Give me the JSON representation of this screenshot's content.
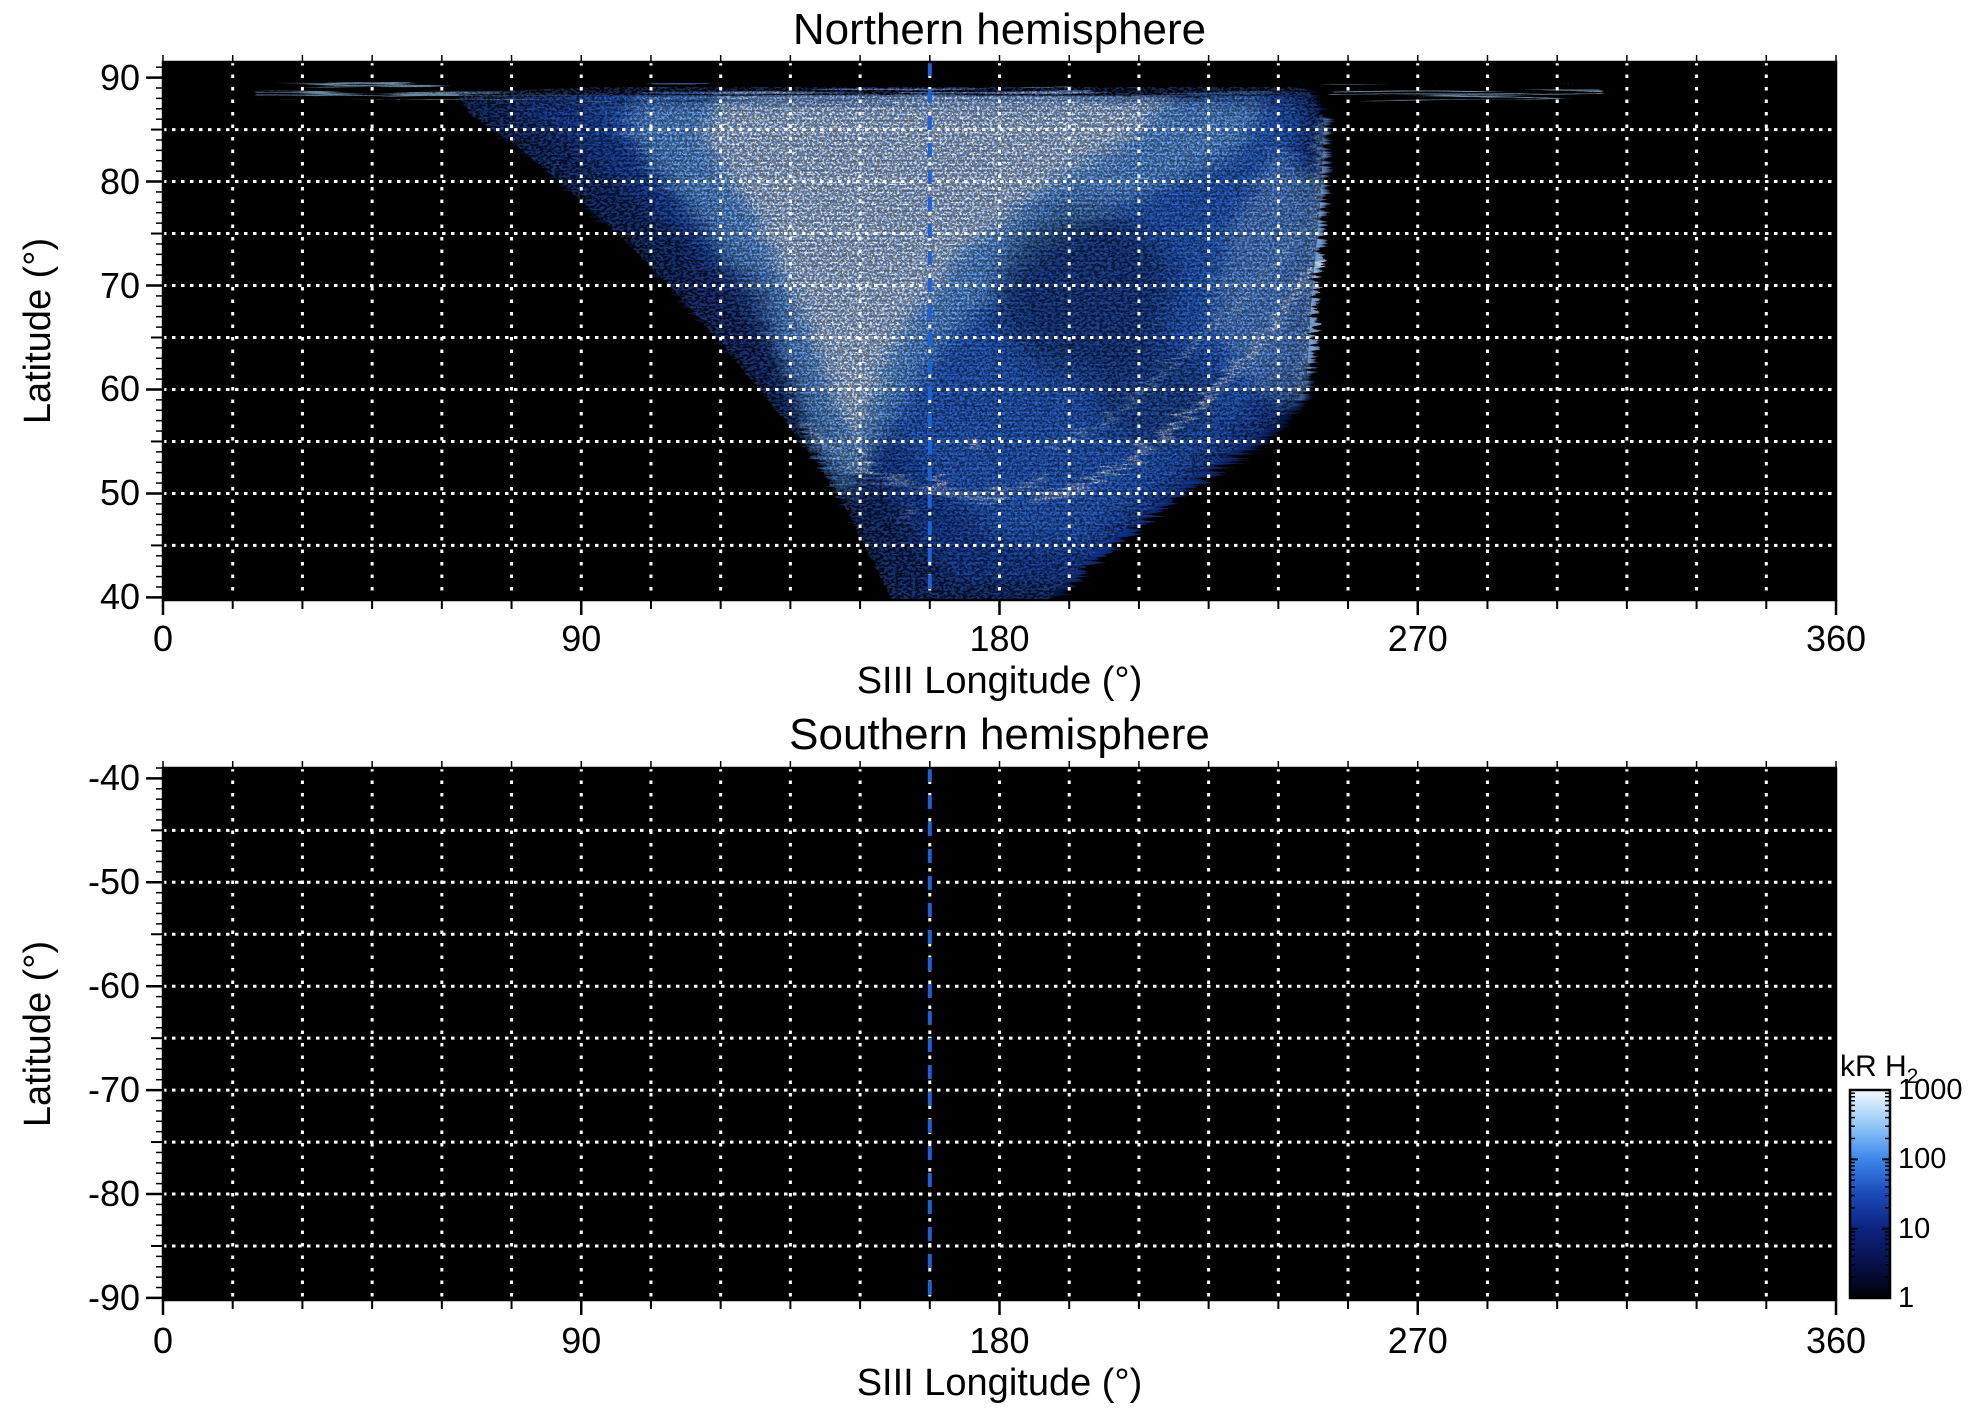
{
  "panels": [
    {
      "title": "Northern hemisphere",
      "x_axis": {
        "label": "SIII Longitude (°)",
        "tick_labels": [
          "0",
          "90",
          "180",
          "270",
          "360"
        ]
      },
      "y_axis": {
        "label": "Latitude (°)",
        "tick_labels": [
          "90",
          "80",
          "70",
          "60",
          "50",
          "40"
        ]
      },
      "marker_longitude": 165
    },
    {
      "title": "Southern hemisphere",
      "x_axis": {
        "label": "SIII Longitude (°)",
        "tick_labels": [
          "0",
          "90",
          "180",
          "270",
          "360"
        ]
      },
      "y_axis": {
        "label": "Latitude (°)",
        "tick_labels": [
          "-40",
          "-50",
          "-60",
          "-70",
          "-80",
          "-90"
        ]
      },
      "marker_longitude": 165
    }
  ],
  "colorbar": {
    "title": "kR H",
    "title_sub": "2",
    "tick_labels": [
      "1000",
      "100",
      "10",
      "1"
    ],
    "scale": "log",
    "gradient_stops": [
      "#010108",
      "#07114a",
      "#0d2380",
      "#1b49b8",
      "#3c86ea",
      "#93c9f7",
      "#f2faff"
    ]
  },
  "colors": {
    "plot_background": "#000000",
    "grid": "#ffffff",
    "marker_line": "#1e62d6",
    "axis": "#000000"
  },
  "chart_data": {
    "type": "heatmap",
    "colorbar": {
      "label": "kR H2",
      "scale": "log",
      "range": [
        1,
        1000
      ],
      "ticks": [
        1,
        10,
        100,
        1000
      ],
      "colormap": "black-darkblue-blue-lightblue-white"
    },
    "marker_line_longitude": 165,
    "grid": {
      "x_step_deg": 15,
      "y_step_deg": 5,
      "style": "white dotted"
    },
    "panels": [
      {
        "title": "Northern hemisphere",
        "xlabel": "SIII Longitude (°)",
        "ylabel": "Latitude (°)",
        "xlim": [
          0,
          360
        ],
        "ylim": [
          40,
          90
        ],
        "x_bin_deg": 15,
        "y_bin_deg": 5,
        "lat_row_ranges_top_to_bottom": [
          "90-85",
          "85-80",
          "80-75",
          "75-70",
          "70-65",
          "65-60",
          "60-55",
          "55-50",
          "50-45",
          "45-40"
        ],
        "lon_bin_start_deg": [
          0,
          15,
          30,
          45,
          60,
          75,
          90,
          105,
          120,
          135,
          150,
          165,
          180,
          195,
          210,
          225,
          240,
          255,
          270,
          285,
          300,
          315,
          330,
          345
        ],
        "intensity_kR": [
          [
            0,
            50,
            80,
            100,
            150,
            250,
            400,
            800,
            1000,
            1000,
            1000,
            900,
            800,
            700,
            500,
            400,
            250,
            150,
            150,
            100,
            50,
            0,
            0,
            0
          ],
          [
            0,
            0,
            0,
            0,
            60,
            120,
            250,
            500,
            700,
            800,
            800,
            700,
            500,
            300,
            250,
            300,
            200,
            0,
            0,
            0,
            0,
            0,
            0,
            0
          ],
          [
            0,
            0,
            0,
            0,
            30,
            60,
            120,
            300,
            450,
            500,
            400,
            250,
            150,
            150,
            250,
            350,
            300,
            0,
            0,
            0,
            0,
            0,
            0,
            0
          ],
          [
            0,
            0,
            0,
            0,
            0,
            25,
            60,
            150,
            300,
            400,
            300,
            150,
            100,
            150,
            200,
            300,
            250,
            0,
            0,
            0,
            0,
            0,
            0,
            0
          ],
          [
            0,
            0,
            0,
            0,
            0,
            0,
            25,
            60,
            150,
            300,
            250,
            120,
            100,
            150,
            250,
            200,
            0,
            0,
            0,
            0,
            0,
            0,
            0,
            0
          ],
          [
            0,
            0,
            0,
            0,
            0,
            0,
            0,
            25,
            80,
            200,
            250,
            150,
            100,
            200,
            250,
            60,
            0,
            0,
            0,
            0,
            0,
            0,
            0,
            0
          ],
          [
            0,
            0,
            0,
            0,
            0,
            0,
            0,
            0,
            30,
            120,
            200,
            200,
            150,
            180,
            60,
            0,
            0,
            0,
            0,
            0,
            0,
            0,
            0,
            0
          ],
          [
            0,
            0,
            0,
            0,
            0,
            0,
            0,
            0,
            0,
            30,
            120,
            250,
            150,
            60,
            0,
            0,
            0,
            0,
            0,
            0,
            0,
            0,
            0,
            0
          ],
          [
            0,
            0,
            0,
            0,
            0,
            0,
            0,
            0,
            0,
            0,
            30,
            80,
            60,
            20,
            0,
            0,
            0,
            0,
            0,
            0,
            0,
            0,
            0,
            0
          ],
          [
            0,
            0,
            0,
            0,
            0,
            0,
            0,
            0,
            0,
            0,
            15,
            40,
            30,
            0,
            0,
            0,
            0,
            0,
            0,
            0,
            0,
            0,
            0,
            0
          ]
        ],
        "features": [
          "thin bright streak at latitude ~89° spanning longitudes ~18°-308°",
          "broad funnel-shaped emission, brightest (near-white, ~1000 kR) at 82°-89° latitude between longitudes ~105°-225°",
          "emission narrows to a faint V reaching latitude 40° near longitude 160°-195°",
          "sharp right boundary near longitude ~250° from latitude ~89° down to ~60°",
          "bright white diagonal arc from (~248°, 73°) to (~186°, 50°)",
          "bright vertical streak near longitude ~147° between latitudes 80° and 52°",
          "small bright blobs near (159°-178°, 48°-56°)",
          "dark mottled bay around (180°-215°, 58°-78°)"
        ]
      },
      {
        "title": "Southern hemisphere",
        "xlabel": "SIII Longitude (°)",
        "ylabel": "Latitude (°)",
        "xlim": [
          0,
          360
        ],
        "ylim": [
          -90,
          -40
        ],
        "intensity_kR": "all zero — no emission observed (panel entirely black)"
      }
    ]
  },
  "aurora_model": {
    "funnel": [
      [
        63,
        88.6
      ],
      [
        95,
        89.1
      ],
      [
        246,
        89.1
      ],
      [
        250,
        86
      ],
      [
        249,
        78
      ],
      [
        247,
        68
      ],
      [
        246,
        60
      ],
      [
        240,
        57
      ],
      [
        230,
        54
      ],
      [
        220,
        51
      ],
      [
        210,
        47.5
      ],
      [
        201,
        44.5
      ],
      [
        194,
        41.5
      ],
      [
        190,
        39.6
      ],
      [
        157,
        39.6
      ],
      [
        152,
        44
      ],
      [
        147,
        48.5
      ],
      [
        140,
        53.5
      ],
      [
        131,
        58.5
      ],
      [
        121,
        64
      ],
      [
        110,
        69.5
      ],
      [
        99,
        74.5
      ],
      [
        88,
        79
      ],
      [
        76,
        83.5
      ],
      [
        66,
        86.5
      ]
    ],
    "fills": [
      {
        "pts": [
          [
            63,
            88.6
          ],
          [
            95,
            89.1
          ],
          [
            246,
            89.1
          ],
          [
            250,
            86
          ],
          [
            249,
            78
          ],
          [
            247,
            68
          ],
          [
            246,
            60
          ],
          [
            240,
            57
          ],
          [
            230,
            54
          ],
          [
            220,
            51
          ],
          [
            210,
            47.5
          ],
          [
            201,
            44.5
          ],
          [
            194,
            41.5
          ],
          [
            190,
            39.6
          ],
          [
            157,
            39.6
          ],
          [
            152,
            44
          ],
          [
            147,
            48.5
          ],
          [
            140,
            53.5
          ],
          [
            131,
            58.5
          ],
          [
            121,
            64
          ],
          [
            110,
            69.5
          ],
          [
            99,
            74.5
          ],
          [
            88,
            79
          ],
          [
            76,
            83.5
          ],
          [
            66,
            86.5
          ]
        ],
        "fill": "#0d2d8c",
        "opacity": 0.5,
        "blur": 6
      },
      {
        "pts": [
          [
            72,
            88.5
          ],
          [
            245,
            88.5
          ],
          [
            247,
            75
          ],
          [
            245,
            62
          ],
          [
            236,
            57
          ],
          [
            224,
            52.5
          ],
          [
            213,
            48.5
          ],
          [
            203,
            45
          ],
          [
            196,
            42
          ],
          [
            170,
            42
          ],
          [
            160,
            47
          ],
          [
            152,
            52
          ],
          [
            143,
            57.5
          ],
          [
            133,
            63
          ],
          [
            122,
            69
          ],
          [
            110,
            75
          ],
          [
            97,
            80.5
          ],
          [
            84,
            85
          ]
        ],
        "fill": "#1747ba",
        "opacity": 0.6,
        "blur": 8
      },
      {
        "pts": [
          [
            88,
            88.5
          ],
          [
            242,
            88.5
          ],
          [
            243,
            74
          ],
          [
            240,
            64
          ],
          [
            230,
            58
          ],
          [
            216,
            52.5
          ],
          [
            204,
            48
          ],
          [
            196,
            45.5
          ],
          [
            180,
            46
          ],
          [
            168,
            50
          ],
          [
            158,
            55
          ],
          [
            148,
            61
          ],
          [
            137,
            67.5
          ],
          [
            125,
            74
          ],
          [
            112,
            80
          ],
          [
            99,
            85
          ]
        ],
        "fill": "#2b70e2",
        "opacity": 0.65,
        "blur": 9
      },
      {
        "pts": [
          [
            100,
            88.6
          ],
          [
            236,
            88.6
          ],
          [
            230,
            83.5
          ],
          [
            214,
            80
          ],
          [
            198,
            76.5
          ],
          [
            183,
            72
          ],
          [
            170,
            66.5
          ],
          [
            159,
            60
          ],
          [
            151,
            54
          ],
          [
            146,
            50
          ],
          [
            140,
            54
          ],
          [
            134,
            61
          ],
          [
            126,
            68.5
          ],
          [
            116,
            75.5
          ],
          [
            106,
            81
          ],
          [
            99,
            85
          ]
        ],
        "fill": "#7dbaf5",
        "opacity": 0.8,
        "blur": 9
      },
      {
        "pts": [
          [
            238,
            84
          ],
          [
            248,
            80
          ],
          [
            247,
            64
          ],
          [
            240,
            59
          ],
          [
            230,
            62
          ],
          [
            224,
            68
          ],
          [
            228,
            76
          ]
        ],
        "fill": "#9ccaf7",
        "opacity": 0.5,
        "blur": 8
      },
      {
        "pts": [
          [
            118,
            88.6
          ],
          [
            216,
            88.6
          ],
          [
            205,
            84
          ],
          [
            188,
            80
          ],
          [
            172,
            74.5
          ],
          [
            161,
            68
          ],
          [
            153,
            61.5
          ],
          [
            148,
            56
          ],
          [
            144,
            59
          ],
          [
            138,
            66
          ],
          [
            130,
            73.5
          ],
          [
            122,
            80
          ],
          [
            115,
            84.5
          ]
        ],
        "fill": "#eef8ff",
        "opacity": 0.85,
        "blur": 8
      }
    ],
    "dark_patches": [
      {
        "c": [
          197,
          70
        ],
        "rx_deg": 19,
        "ry_deg": 8,
        "fill": "#050e35",
        "opacity": 0.55,
        "blur": 12
      },
      {
        "c": [
          212,
          60
        ],
        "rx_deg": 13,
        "ry_deg": 5,
        "fill": "#050e35",
        "opacity": 0.4,
        "blur": 10
      },
      {
        "c": [
          118,
          67
        ],
        "rx_deg": 12,
        "ry_deg": 6,
        "fill": "#081747",
        "opacity": 0.45,
        "blur": 10
      }
    ],
    "strokes": [
      {
        "pts": [
          [
            248,
            86
          ],
          [
            247,
            76
          ],
          [
            246,
            66
          ],
          [
            243,
            60
          ]
        ],
        "color": "#a6d4fa",
        "w": 7,
        "blur": 4,
        "opacity": 0.85
      },
      {
        "pts": [
          [
            248,
            73
          ],
          [
            236,
            66
          ],
          [
            222,
            59
          ],
          [
            208,
            54
          ],
          [
            196,
            51
          ],
          [
            186,
            50
          ]
        ],
        "color": "#ffffff",
        "w": 4,
        "blur": 2.5,
        "opacity": 0.95
      },
      {
        "pts": [
          [
            244,
            76
          ],
          [
            230,
            69
          ],
          [
            214,
            62
          ],
          [
            200,
            57
          ],
          [
            190,
            55
          ]
        ],
        "color": "#bfe0fb",
        "w": 3,
        "blur": 2,
        "opacity": 0.7
      },
      {
        "pts": [
          [
            149,
            79
          ],
          [
            146,
            71
          ],
          [
            145,
            63
          ],
          [
            147,
            57
          ],
          [
            151,
            52
          ]
        ],
        "color": "#e8f5ff",
        "w": 4,
        "blur": 2.5,
        "opacity": 0.9
      },
      {
        "pts": [
          [
            136,
            57
          ],
          [
            148,
            53
          ],
          [
            162,
            51
          ],
          [
            176,
            50
          ],
          [
            188,
            52
          ]
        ],
        "color": "#d5ecfd",
        "w": 3.5,
        "blur": 2,
        "opacity": 0.85
      },
      {
        "pts": [
          [
            158,
            64
          ],
          [
            176,
            64
          ]
        ],
        "color": "#e8f5ff",
        "w": 3,
        "blur": 2,
        "opacity": 0.8
      },
      {
        "pts": [
          [
            152,
            86
          ],
          [
            149,
            76
          ]
        ],
        "color": "#d5ecfd",
        "w": 3,
        "blur": 2,
        "opacity": 0.6
      },
      {
        "pts": [
          [
            166,
            84
          ],
          [
            159,
            72
          ]
        ],
        "color": "#d5ecfd",
        "w": 3,
        "blur": 2,
        "opacity": 0.6
      }
    ],
    "blobs": [
      [
        166,
        51.5,
        5
      ],
      [
        173,
        55.5,
        4
      ],
      [
        159,
        48.5,
        3.5
      ],
      [
        178,
        51,
        4
      ],
      [
        150,
        53,
        3
      ]
    ],
    "top_streaks": [
      {
        "pts": [
          [
            18,
            89.3
          ],
          [
            60,
            89.0
          ],
          [
            95,
            88.8
          ]
        ],
        "color": "#9fd2f8",
        "w": 2.5,
        "blur": 1,
        "opacity": 0.9
      },
      {
        "pts": [
          [
            250,
            88.8
          ],
          [
            280,
            89.0
          ],
          [
            308,
            89.2
          ]
        ],
        "color": "#9fd2f8",
        "w": 2.5,
        "blur": 1,
        "opacity": 0.9
      },
      {
        "pts": [
          [
            95,
            88.9
          ],
          [
            250,
            88.9
          ]
        ],
        "color": "#e8f5ff",
        "w": 3,
        "blur": 1.5,
        "opacity": 0.95
      }
    ]
  }
}
